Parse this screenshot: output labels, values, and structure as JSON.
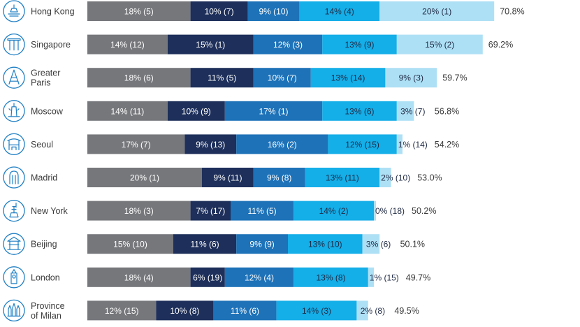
{
  "chart_data": {
    "type": "bar",
    "orientation": "horizontal",
    "stacked": true,
    "title": "",
    "xlabel": "",
    "ylabel": "",
    "xlim": [
      0,
      100
    ],
    "grid": false,
    "legend": "none",
    "colors": [
      "#76777b",
      "#1d2f5a",
      "#1d72b8",
      "#14aee8",
      "#aee0f5"
    ],
    "rows": [
      {
        "city": [
          "Hong Kong"
        ],
        "icon": "harbour-icon",
        "total": "70.8%",
        "segments": [
          {
            "value": 18,
            "label": "18% (5)"
          },
          {
            "value": 10,
            "label": "10% (7)"
          },
          {
            "value": 9,
            "label": "9% (10)"
          },
          {
            "value": 14,
            "label": "14% (4)"
          },
          {
            "value": 20,
            "label": "20% (1)"
          }
        ]
      },
      {
        "city": [
          "Singapore"
        ],
        "icon": "marina-icon",
        "total": "69.2%",
        "segments": [
          {
            "value": 14,
            "label": "14% (12)"
          },
          {
            "value": 15,
            "label": "15% (1)"
          },
          {
            "value": 12,
            "label": "12% (3)"
          },
          {
            "value": 13,
            "label": "13% (9)"
          },
          {
            "value": 15,
            "label": "15% (2)"
          }
        ]
      },
      {
        "city": [
          "Greater",
          "Paris"
        ],
        "icon": "eiffel-tower-icon",
        "total": "59.7%",
        "segments": [
          {
            "value": 18,
            "label": "18% (6)"
          },
          {
            "value": 11,
            "label": "11% (5)"
          },
          {
            "value": 10,
            "label": "10% (7)"
          },
          {
            "value": 13,
            "label": "13% (14)"
          },
          {
            "value": 9,
            "label": "9% (3)"
          }
        ]
      },
      {
        "city": [
          "Moscow"
        ],
        "icon": "kremlin-icon",
        "total": "56.8%",
        "segments": [
          {
            "value": 14,
            "label": "14% (11)"
          },
          {
            "value": 10,
            "label": "10% (9)"
          },
          {
            "value": 17,
            "label": "17% (1)"
          },
          {
            "value": 13,
            "label": "13% (6)"
          },
          {
            "value": 3,
            "label": "3% (7)"
          }
        ]
      },
      {
        "city": [
          "Seoul"
        ],
        "icon": "gate-icon",
        "total": "54.2%",
        "segments": [
          {
            "value": 17,
            "label": "17% (7)"
          },
          {
            "value": 9,
            "label": "9% (13)"
          },
          {
            "value": 16,
            "label": "16% (2)"
          },
          {
            "value": 12,
            "label": "12% (15)"
          },
          {
            "value": 1,
            "label": "1% (14)"
          }
        ]
      },
      {
        "city": [
          "Madrid"
        ],
        "icon": "bear-statue-icon",
        "total": "53.0%",
        "segments": [
          {
            "value": 20,
            "label": "20% (1)"
          },
          {
            "value": 9,
            "label": "9% (11)"
          },
          {
            "value": 9,
            "label": "9% (8)"
          },
          {
            "value": 13,
            "label": "13% (11)"
          },
          {
            "value": 2,
            "label": "2% (10)"
          }
        ]
      },
      {
        "city": [
          "New York"
        ],
        "icon": "statue-of-liberty-icon",
        "total": "50.2%",
        "segments": [
          {
            "value": 18,
            "label": "18% (3)"
          },
          {
            "value": 7,
            "label": "7% (17)"
          },
          {
            "value": 11,
            "label": "11% (5)"
          },
          {
            "value": 14,
            "label": "14% (2)"
          },
          {
            "value": 0,
            "label": "0% (18)"
          }
        ]
      },
      {
        "city": [
          "Beijing"
        ],
        "icon": "temple-icon",
        "total": "50.1%",
        "segments": [
          {
            "value": 15,
            "label": "15% (10)"
          },
          {
            "value": 11,
            "label": "11% (6)"
          },
          {
            "value": 9,
            "label": "9% (9)"
          },
          {
            "value": 13,
            "label": "13% (10)"
          },
          {
            "value": 3,
            "label": "3% (6)"
          }
        ]
      },
      {
        "city": [
          "London"
        ],
        "icon": "big-ben-icon",
        "total": "49.7%",
        "segments": [
          {
            "value": 18,
            "label": "18% (4)"
          },
          {
            "value": 6,
            "label": "6% (19)"
          },
          {
            "value": 12,
            "label": "12% (4)"
          },
          {
            "value": 13,
            "label": "13% (8)"
          },
          {
            "value": 1,
            "label": "1% (15)"
          }
        ]
      },
      {
        "city": [
          "Province",
          "of Milan"
        ],
        "icon": "cathedral-icon",
        "total": "49.5%",
        "segments": [
          {
            "value": 12,
            "label": "12% (15)"
          },
          {
            "value": 10,
            "label": "10% (8)"
          },
          {
            "value": 11,
            "label": "11% (6)"
          },
          {
            "value": 14,
            "label": "14% (3)"
          },
          {
            "value": 2,
            "label": "2% (8)"
          }
        ]
      }
    ]
  }
}
